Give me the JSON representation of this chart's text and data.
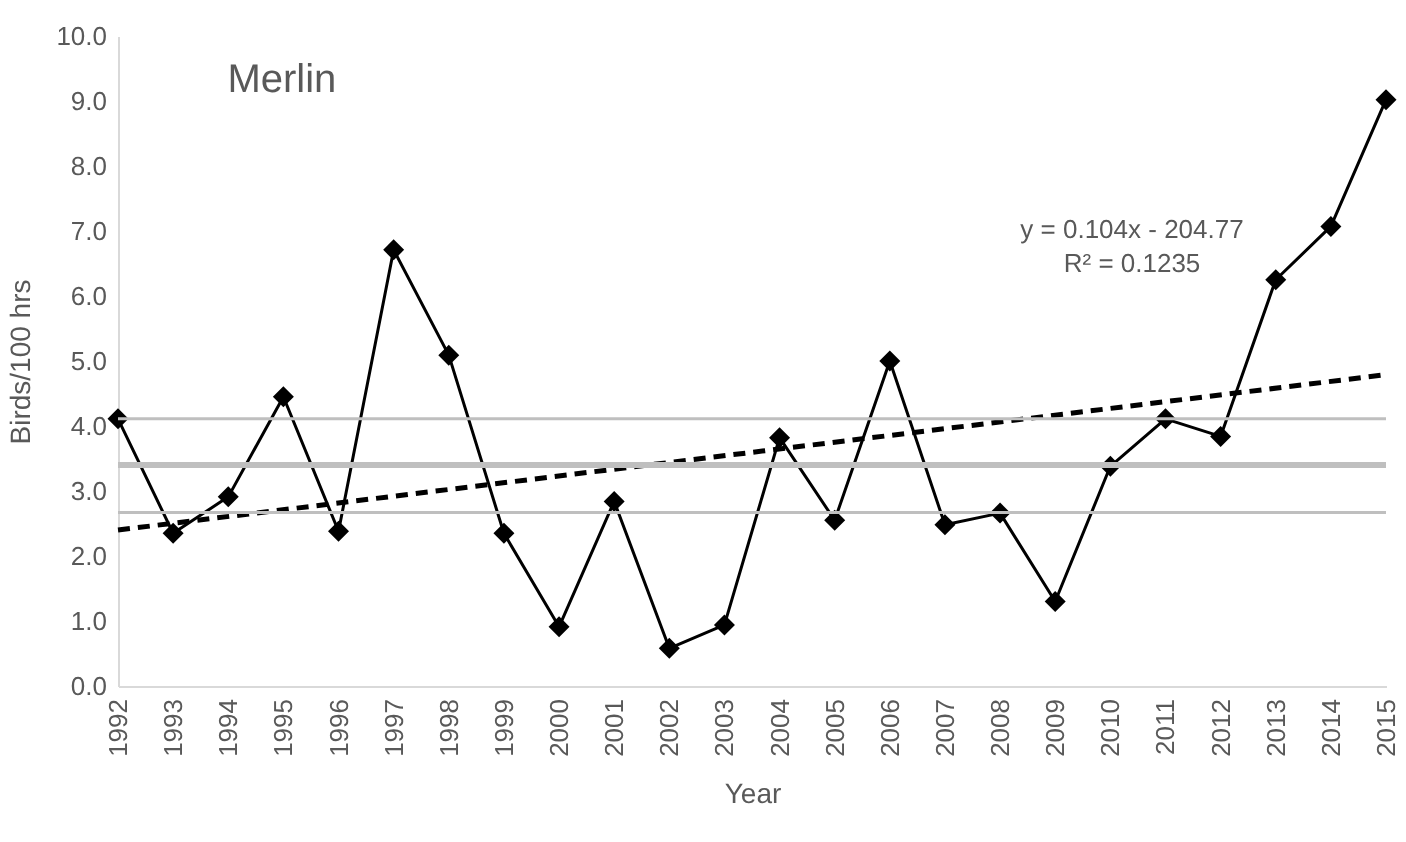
{
  "chart_data": {
    "type": "line",
    "title": "Merlin",
    "xlabel": "Year",
    "ylabel": "Birds/100 hrs",
    "x": [
      1992,
      1993,
      1994,
      1995,
      1996,
      1997,
      1998,
      1999,
      2000,
      2001,
      2002,
      2003,
      2004,
      2005,
      2006,
      2007,
      2008,
      2009,
      2010,
      2011,
      2012,
      2013,
      2014,
      2015
    ],
    "series": [
      {
        "color": "#000000",
        "marker": "diamond",
        "line_style": "solid",
        "values": [
          4.11,
          2.35,
          2.91,
          4.45,
          2.38,
          6.71,
          5.09,
          2.35,
          0.91,
          2.84,
          0.58,
          0.94,
          3.82,
          2.55,
          5.0,
          2.48,
          2.66,
          1.3,
          3.38,
          4.11,
          3.84,
          6.25,
          7.07,
          9.02
        ]
      },
      {
        "type": "line",
        "color": "#000000",
        "marker": "none",
        "line_style": "dashed",
        "x": [
          1992,
          2015
        ],
        "values": [
          2.4,
          4.79
        ]
      }
    ],
    "ref_lines": [
      {
        "axis": "y",
        "value": 4.11,
        "color": "#bfbfbf"
      },
      {
        "axis": "y",
        "value": 3.4,
        "color": "#bfbfbf"
      },
      {
        "axis": "y",
        "value": 2.67,
        "color": "#bfbfbf"
      }
    ],
    "annotations": [
      "y = 0.104x - 204.77",
      "R² = 0.1235"
    ],
    "xlim": [
      1992,
      2015
    ],
    "xticks": [
      1992,
      1993,
      1994,
      1995,
      1996,
      1997,
      1998,
      1999,
      2000,
      2001,
      2002,
      2003,
      2004,
      2005,
      2006,
      2007,
      2008,
      2009,
      2010,
      2011,
      2012,
      2013,
      2014,
      2015
    ],
    "ylim": [
      0,
      10
    ],
    "yticks": [
      {
        "value": 0,
        "label": "0.0"
      },
      {
        "value": 1,
        "label": "1.0"
      },
      {
        "value": 2,
        "label": "2.0"
      },
      {
        "value": 3,
        "label": "3.0"
      },
      {
        "value": 4,
        "label": "4.0"
      },
      {
        "value": 5,
        "label": "5.0"
      },
      {
        "value": 6,
        "label": "6.0"
      },
      {
        "value": 7,
        "label": "7.0"
      },
      {
        "value": 8,
        "label": "8.0"
      },
      {
        "value": 9,
        "label": "9.0"
      },
      {
        "value": 10,
        "label": "10.0"
      }
    ],
    "grid": false
  }
}
